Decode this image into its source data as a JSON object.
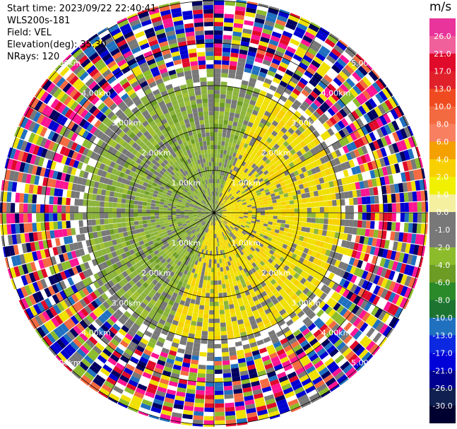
{
  "header": {
    "start_time": "Start time: 2023/09/22 22:40:41",
    "instrument": "WLS200s-181",
    "field": "Field: VEL",
    "elevation": "Elevation(deg): 35.30",
    "nrays": "NRays: 120"
  },
  "chart_data": {
    "type": "polar-ppi",
    "field": "VEL",
    "units": "m/s",
    "nrays": 120,
    "ranges_km": [
      1,
      2,
      3,
      4,
      5
    ],
    "range_labels": [
      "1.00km",
      "2.00km",
      "3.00km",
      "4.00km",
      "5.00km"
    ],
    "colorbar": {
      "label": "m/s",
      "ticks": [
        "26.0",
        "21.0",
        "17.0",
        "13.0",
        "10.0",
        "8.0",
        "6.0",
        "4.0",
        "2.0",
        "1.0",
        "0.0",
        "-1.0",
        "-2.0",
        "-4.0",
        "-6.0",
        "-8.0",
        "-10.0",
        "-13.0",
        "-17.0",
        "-21.0",
        "-26.0",
        "-30.0"
      ],
      "colors": [
        "#e8349b",
        "#f0609b",
        "#e00a2a",
        "#e0202a",
        "#f04a20",
        "#f46a40",
        "#f88060",
        "#f4a000",
        "#f8d000",
        "#f0f000",
        "#f4f0a0",
        "#787878",
        "#787878",
        "#8cbc2c",
        "#6c9c24",
        "#2a8a2a",
        "#1c7430",
        "#2070c0",
        "#0c28e0",
        "#0000d8",
        "#000090",
        "#102050",
        "#000030"
      ]
    },
    "regions": {
      "near_field_colors": [
        "#8cb43c",
        "#a0c030",
        "#6c9c24",
        "#787878",
        "#f0e000",
        "#f8d000"
      ],
      "far_field_colors": [
        "#ff1493",
        "#f0e000",
        "#0000d0",
        "#e00a2a",
        "#8cbc2c",
        "#000060",
        "#787878",
        "#f46a40",
        "#2070c0",
        "#ffffff"
      ]
    }
  }
}
